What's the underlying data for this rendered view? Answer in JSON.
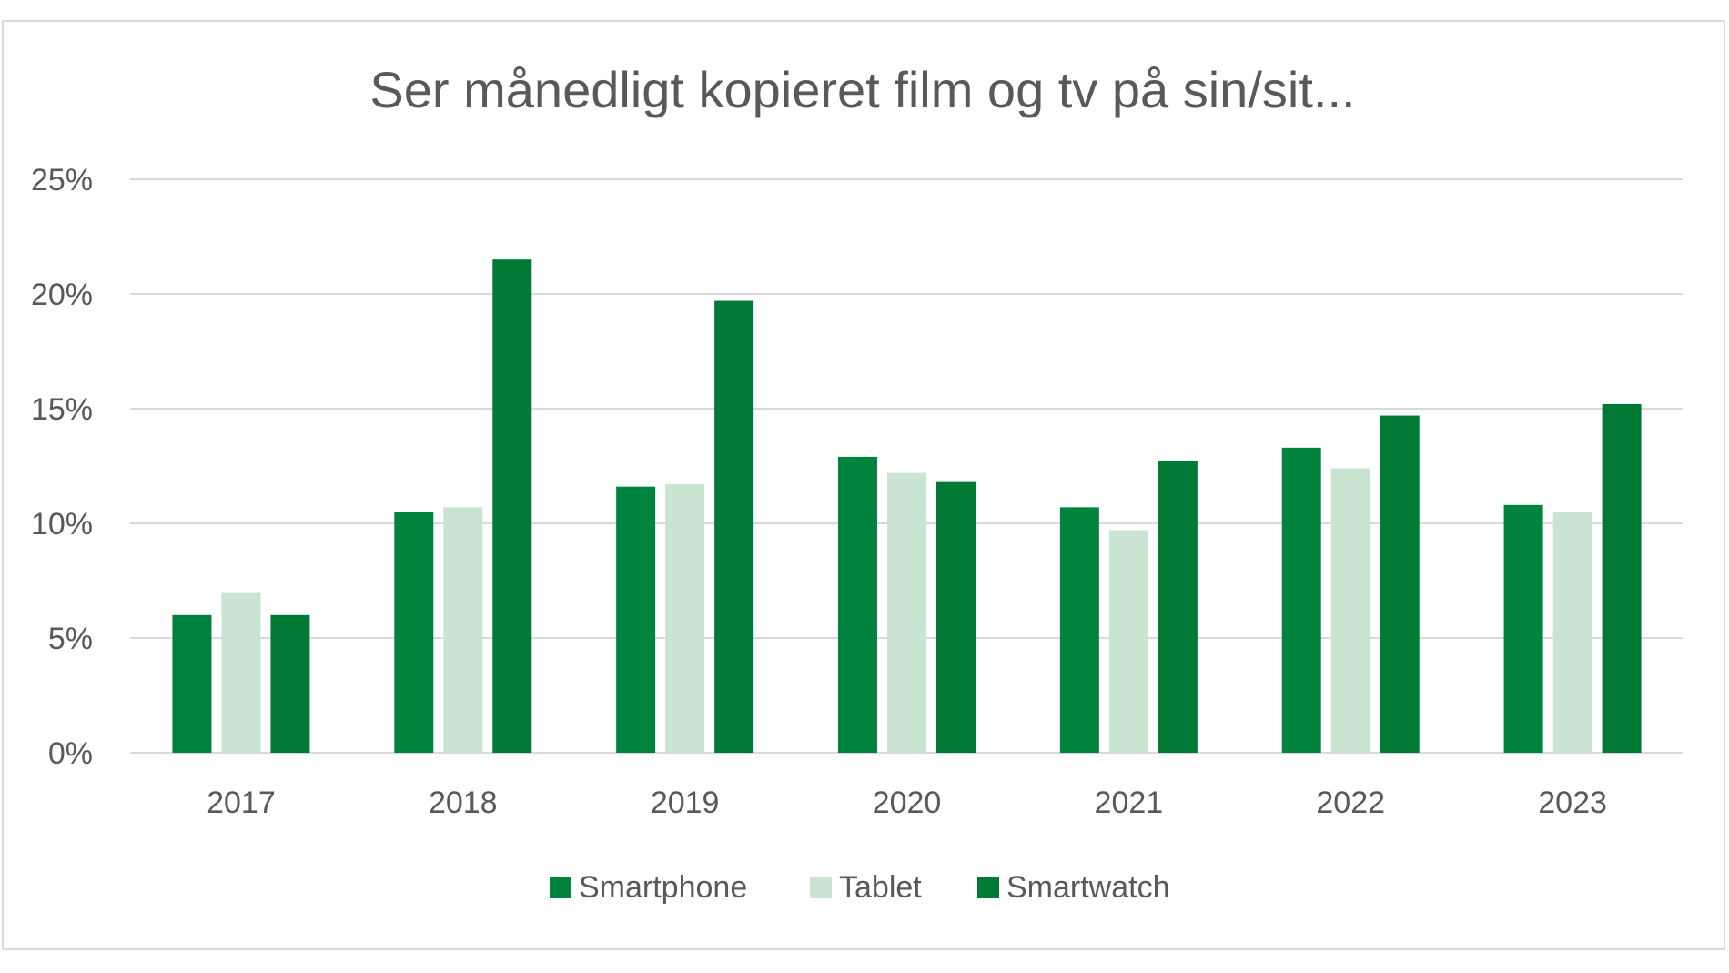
{
  "chart_data": {
    "type": "bar",
    "title": "Ser månedligt kopieret film og tv på sin/sit...",
    "xlabel": "",
    "ylabel": "",
    "categories": [
      "2017",
      "2018",
      "2019",
      "2020",
      "2021",
      "2022",
      "2023"
    ],
    "series": [
      {
        "name": "Smartphone",
        "color": "#00843d",
        "values": [
          6.0,
          10.5,
          11.6,
          12.9,
          10.7,
          13.3,
          10.8
        ]
      },
      {
        "name": "Tablet",
        "color": "#c9e5d1",
        "values": [
          7.0,
          10.7,
          11.7,
          12.2,
          9.7,
          12.4,
          10.5
        ]
      },
      {
        "name": "Smartwatch",
        "color": "#007a35",
        "values": [
          6.0,
          21.5,
          19.7,
          11.8,
          12.7,
          14.7,
          15.2
        ]
      }
    ],
    "ylim": [
      0,
      25
    ],
    "yticks": [
      0,
      5,
      10,
      15,
      20,
      25
    ],
    "ytick_labels": [
      "0%",
      "5%",
      "10%",
      "15%",
      "20%",
      "25%"
    ],
    "grid": true,
    "legend_position": "bottom"
  }
}
